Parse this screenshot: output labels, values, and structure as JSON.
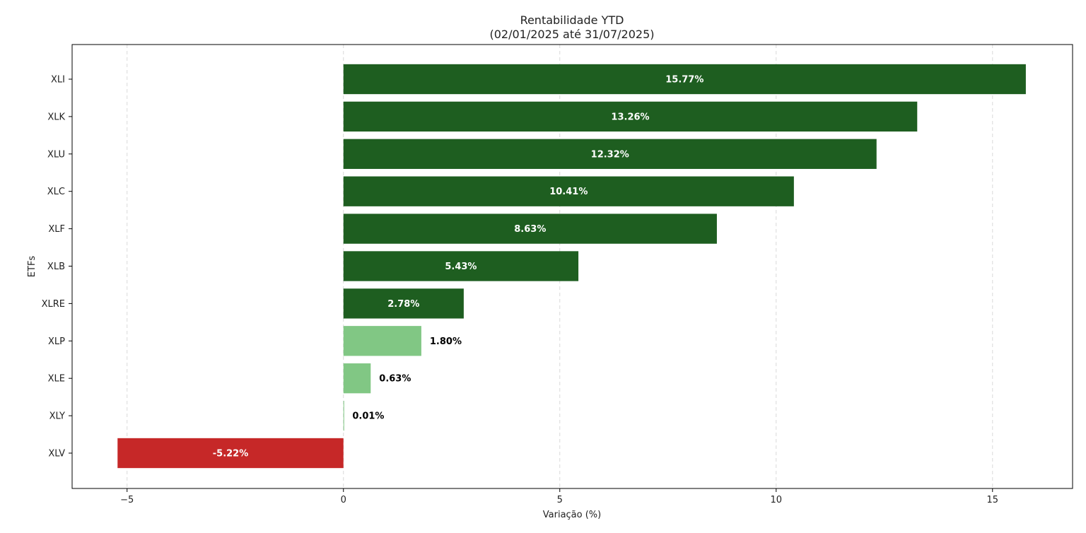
{
  "chart_data": {
    "type": "bar",
    "orientation": "horizontal",
    "title": "Rentabilidade YTD",
    "subtitle": "(02/01/2025 até 31/07/2025)",
    "xlabel": "Variação (%)",
    "ylabel": "ETFs",
    "xlim": [
      -6.27,
      16.85
    ],
    "xticks": [
      -5,
      0,
      5,
      10,
      15
    ],
    "xtick_labels": [
      "−5",
      "0",
      "5",
      "10",
      "15"
    ],
    "grid": "vertical dashed",
    "categories": [
      "XLI",
      "XLK",
      "XLU",
      "XLC",
      "XLF",
      "XLB",
      "XLRE",
      "XLP",
      "XLE",
      "XLY",
      "XLV"
    ],
    "values": [
      15.77,
      13.26,
      12.32,
      10.41,
      8.63,
      5.43,
      2.78,
      1.8,
      0.63,
      0.01,
      -5.22
    ],
    "value_labels": [
      "15.77%",
      "13.26%",
      "12.32%",
      "10.41%",
      "8.63%",
      "5.43%",
      "2.78%",
      "1.80%",
      "0.63%",
      "0.01%",
      "-5.22%"
    ],
    "colors": {
      "strong_positive": "#1e5e20",
      "weak_positive": "#81c784",
      "negative": "#c62828",
      "label_inside": "#ffffff",
      "label_outside": "#000000",
      "grid": "#d9d9d9"
    }
  }
}
